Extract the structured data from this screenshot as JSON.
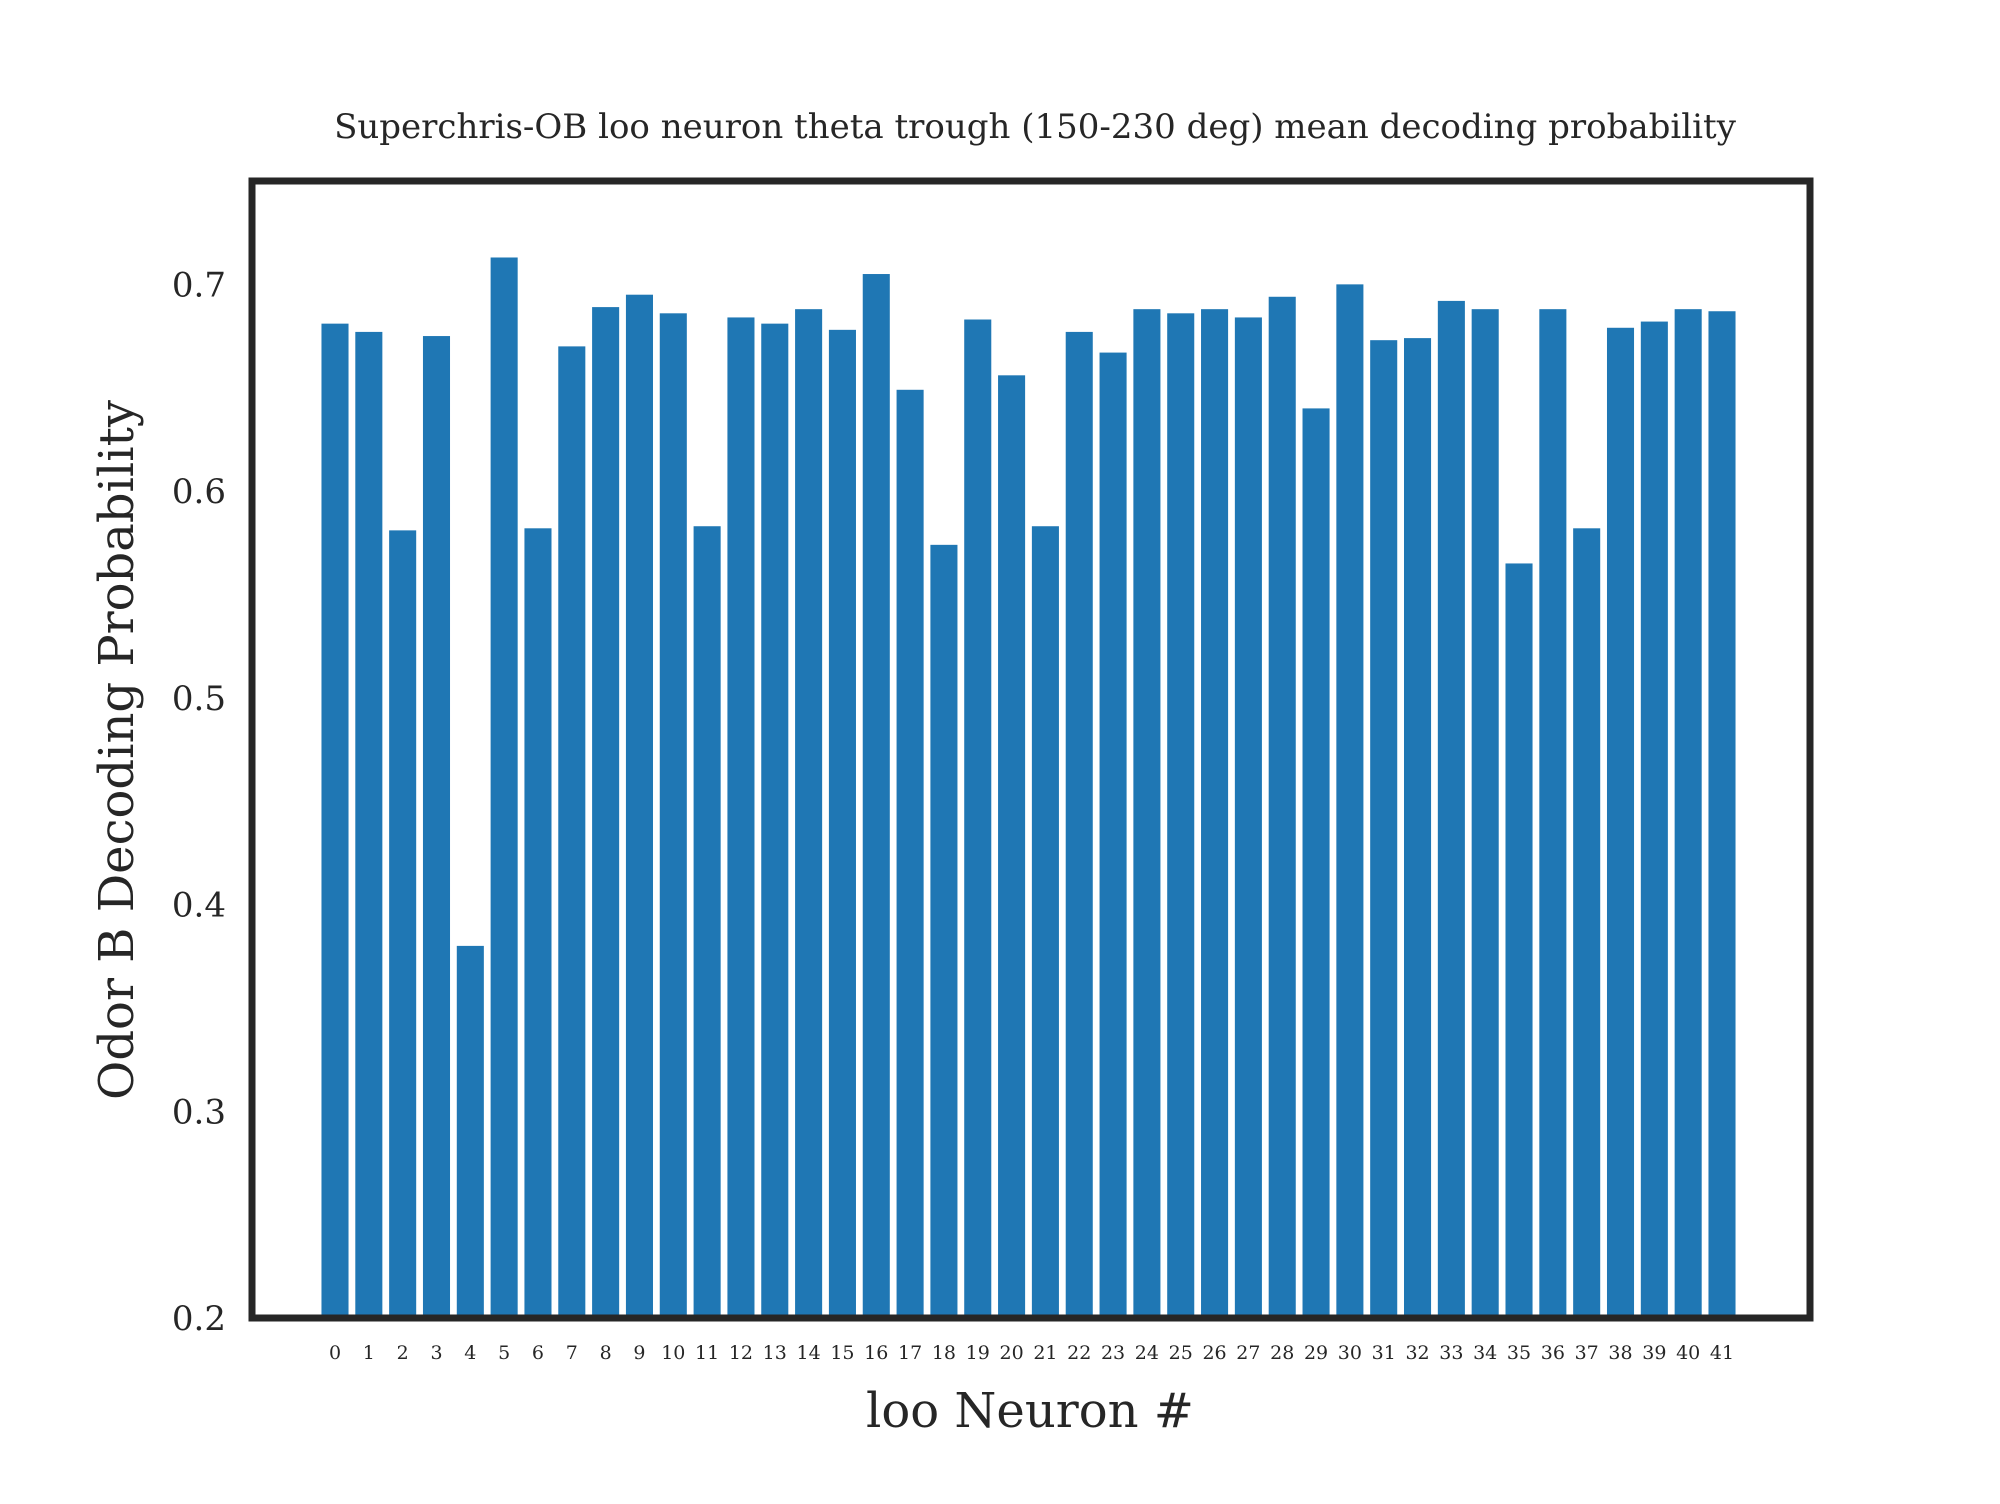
{
  "chart_data": {
    "type": "bar",
    "title": "Superchris-OB loo neuron theta trough (150-230 deg) mean decoding probability",
    "xlabel": "loo Neuron #",
    "ylabel": "Odor B Decoding Probability",
    "ylim": [
      0.2,
      0.75
    ],
    "yticks": [
      "0.2",
      "0.3",
      "0.4",
      "0.5",
      "0.6",
      "0.7"
    ],
    "grid": false,
    "bar_color": "#1f77b4",
    "frame_color": "#262626",
    "categories": [
      "0",
      "1",
      "2",
      "3",
      "4",
      "5",
      "6",
      "7",
      "8",
      "9",
      "10",
      "11",
      "12",
      "13",
      "14",
      "15",
      "16",
      "17",
      "18",
      "19",
      "20",
      "21",
      "22",
      "23",
      "24",
      "25",
      "26",
      "27",
      "28",
      "29",
      "30",
      "31",
      "32",
      "33",
      "34",
      "35",
      "36",
      "37",
      "38",
      "39",
      "40",
      "41"
    ],
    "values": [
      0.681,
      0.677,
      0.581,
      0.675,
      0.38,
      0.713,
      0.582,
      0.67,
      0.689,
      0.695,
      0.686,
      0.583,
      0.684,
      0.681,
      0.688,
      0.678,
      0.705,
      0.649,
      0.574,
      0.683,
      0.656,
      0.583,
      0.677,
      0.667,
      0.688,
      0.686,
      0.688,
      0.684,
      0.694,
      0.64,
      0.7,
      0.673,
      0.674,
      0.692,
      0.688,
      0.565,
      0.688,
      0.582,
      0.679,
      0.682,
      0.688,
      0.687
    ]
  }
}
